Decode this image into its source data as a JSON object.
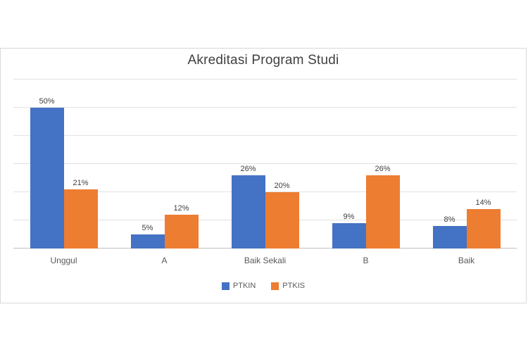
{
  "chart_data": {
    "type": "bar",
    "title": "Akreditasi Program Studi",
    "categories": [
      "Unggul",
      "A",
      "Baik Sekali",
      "B",
      "Baik"
    ],
    "series": [
      {
        "name": "PTKIN",
        "color": "#4472C4",
        "values": [
          50,
          5,
          26,
          9,
          8
        ],
        "labels": [
          "50%",
          "5%",
          "26%",
          "9%",
          "8%"
        ]
      },
      {
        "name": "PTKIS",
        "color": "#ED7D31",
        "values": [
          21,
          12,
          20,
          26,
          14
        ],
        "labels": [
          "21%",
          "12%",
          "20%",
          "26%",
          "14%"
        ]
      }
    ],
    "xlabel": "",
    "ylabel": "",
    "ylim": [
      0,
      60
    ],
    "grid_step": 10,
    "grid": true,
    "legend_position": "bottom"
  },
  "colors": {
    "chart_border": "#D9D9D9",
    "gridline": "#E2E2E2",
    "axis_line": "#BFBFBF",
    "title_text": "#404040",
    "data_label_text": "#404040",
    "category_text": "#595959",
    "legend_text": "#595959"
  }
}
